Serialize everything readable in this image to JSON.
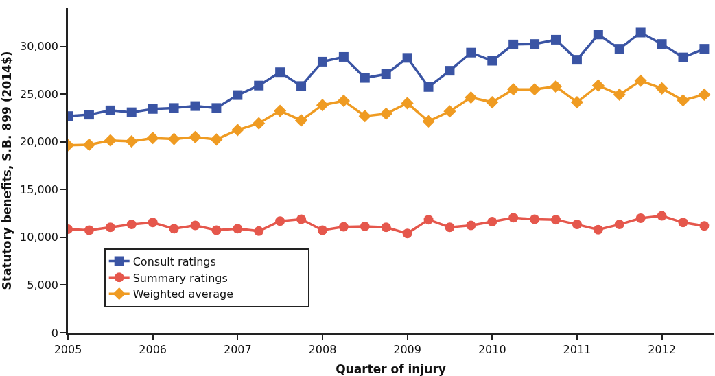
{
  "chart_data": {
    "type": "line",
    "xlabel": "Quarter of injury",
    "ylabel": "Statutory benefits, S.B. 899 (2014$)",
    "x": [
      2005,
      2005.25,
      2005.5,
      2005.75,
      2006,
      2006.25,
      2006.5,
      2006.75,
      2007,
      2007.25,
      2007.5,
      2007.75,
      2008,
      2008.25,
      2008.5,
      2008.75,
      2009,
      2009.25,
      2009.5,
      2009.75,
      2010,
      2010.25,
      2010.5,
      2010.75,
      2011,
      2011.25,
      2011.5,
      2011.75,
      2012,
      2012.25,
      2012.5
    ],
    "series": [
      {
        "name": "Consult ratings",
        "color": "#3a54a4",
        "marker": "square",
        "values": [
          22700,
          22850,
          23300,
          23100,
          23450,
          23550,
          23750,
          23550,
          24900,
          25900,
          27300,
          25850,
          28400,
          28900,
          26700,
          27100,
          28800,
          25750,
          27450,
          29350,
          28500,
          30200,
          30250,
          30700,
          28600,
          31250,
          29750,
          31450,
          30250,
          28850,
          29750
        ]
      },
      {
        "name": "Summary ratings",
        "color": "#e5574c",
        "marker": "circle",
        "values": [
          10850,
          10750,
          11050,
          11350,
          11550,
          10900,
          11250,
          10750,
          10900,
          10650,
          11700,
          11900,
          10750,
          11100,
          11150,
          11050,
          10400,
          11850,
          11050,
          11250,
          11650,
          12050,
          11900,
          11850,
          11350,
          10800,
          11350,
          12000,
          12250,
          11550,
          11200
        ]
      },
      {
        "name": "Weighted average",
        "color": "#ef9b22",
        "marker": "diamond",
        "values": [
          19650,
          19700,
          20150,
          20050,
          20400,
          20300,
          20500,
          20250,
          21250,
          21950,
          23250,
          22250,
          23850,
          24300,
          22700,
          22950,
          24050,
          22150,
          23200,
          24650,
          24150,
          25500,
          25500,
          25800,
          24150,
          25900,
          24950,
          26400,
          25600,
          24350,
          24950
        ]
      }
    ],
    "xlim": [
      2005,
      2012.61
    ],
    "xticks": [
      2005,
      2006,
      2007,
      2008,
      2009,
      2010,
      2011,
      2012
    ],
    "ylim": [
      0,
      34000
    ],
    "yticks": [
      {
        "value": 0,
        "label": "0"
      },
      {
        "value": 5000,
        "label": "5,000"
      },
      {
        "value": 10000,
        "label": "10,000"
      },
      {
        "value": 15000,
        "label": "15,000"
      },
      {
        "value": 20000,
        "label": "20,000"
      },
      {
        "value": 25000,
        "label": "25,000"
      },
      {
        "value": 30000,
        "label": "30,000"
      }
    ],
    "legend": "bottom",
    "line_style": "solid"
  }
}
